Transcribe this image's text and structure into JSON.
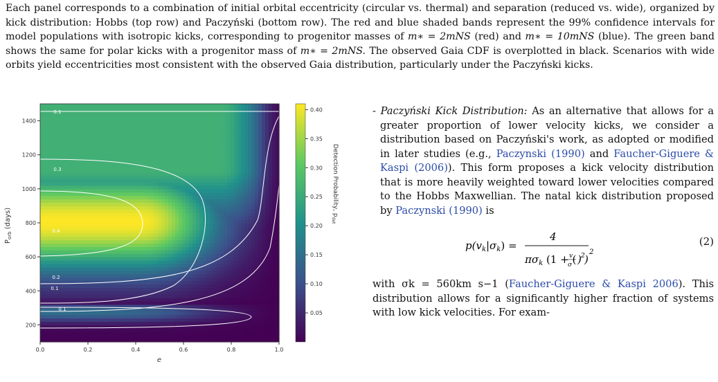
{
  "caption": {
    "text_part1": "Each panel corresponds to a combination of initial orbital eccentricity (circular vs. thermal) and separation (reduced vs. wide), organized by kick distribution: Hobbs (top row) and Paczyński (bottom row). The red and blue shaded bands represent the 99% confidence intervals for model populations with isotropic kicks, corresponding to progenitor masses of",
    "m_red": "m∗ = 2mNS",
    "red_word": "(red) and",
    "m_blue": "m∗ = 10mNS",
    "text_part2": "(blue). The green band shows the same for polar kicks with a progenitor mass of",
    "m_green": "m∗ = 2mNS.",
    "text_part3": "The observed Gaia CDF is overplotted in black. Scenarios with wide orbits yield eccentricities most consistent with the observed Gaia distribution, particularly under the Paczyński kicks."
  },
  "chart_data": {
    "type": "heatmap",
    "xlabel": "e",
    "ylabel": "P_orb (days)",
    "colorbar_label": "Detection Probability, p_det",
    "xlim": [
      0.0,
      1.0
    ],
    "ylim": [
      100,
      1500
    ],
    "x_ticks": [
      "0.0",
      "0.2",
      "0.4",
      "0.6",
      "0.8",
      "1.0"
    ],
    "y_ticks": [
      "200",
      "400",
      "600",
      "800",
      "1000",
      "1200",
      "1400"
    ],
    "colorbar_ticks": [
      "0.05",
      "0.10",
      "0.15",
      "0.20",
      "0.25",
      "0.30",
      "0.35",
      "0.40"
    ],
    "colorbar_range": [
      0.0,
      0.41
    ],
    "contour_labels": [
      {
        "text": "0.1",
        "level": 0.1
      },
      {
        "text": "0.3",
        "level": 0.3
      },
      {
        "text": "0.4",
        "level": 0.4
      },
      {
        "text": "0.2",
        "level": 0.2
      },
      {
        "text": "0.1",
        "level": 0.1
      },
      {
        "text": "0.1",
        "level": 0.1
      }
    ],
    "peak": {
      "e": 0.0,
      "p_orb": 810,
      "p_det": 0.41
    },
    "colormap": [
      "#440154",
      "#3b528b",
      "#21918c",
      "#5ec962",
      "#fde725"
    ]
  },
  "body": {
    "heading": "Paczyński Kick Distribution:",
    "para1": "As an alternative that allows for a greater proportion of lower velocity kicks, we consider a distribution based on Paczyński's work, as adopted or modified in later studies (e.g.,",
    "cite1": "Paczynski",
    "cite1_year": "(1990)",
    "and": "and",
    "cite2": "Faucher-Giguere & Kaspi",
    "cite2_year": "(2006)",
    "para1b": "). This form proposes a kick velocity distribution that is more heavily weighted toward lower velocities compared to the Hobbs Maxwellian. The natal kick distribution proposed by",
    "cite3": "Paczynski",
    "cite3_year": "(1990)",
    "para1c": "is",
    "eq_number": "(2)",
    "para2a": "with σk = 560km s−1 (",
    "cite4": "Faucher-Giguere & Kaspi 2006",
    "para2b": "). This distribution allows for a significantly higher fraction of systems with low kick velocities. For exam-"
  }
}
